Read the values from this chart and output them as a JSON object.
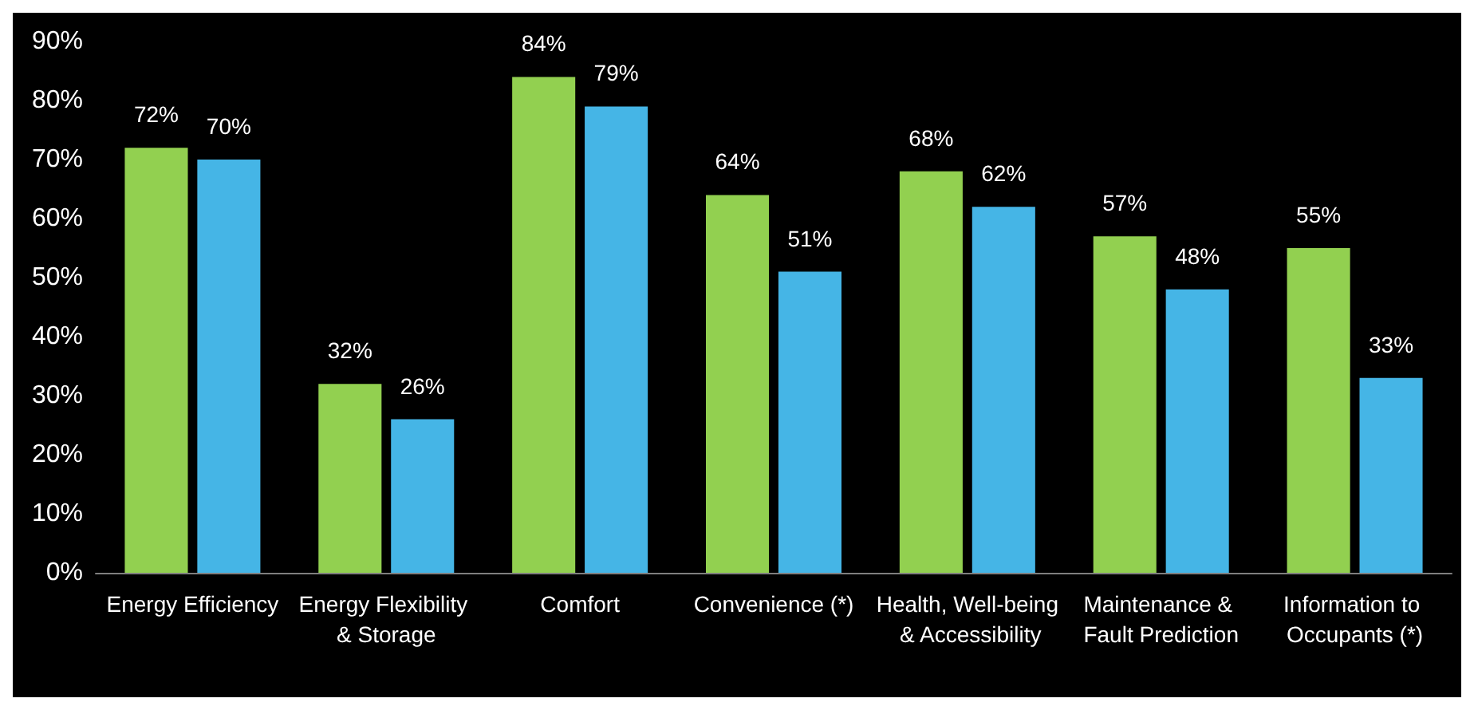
{
  "chart_data": {
    "type": "bar",
    "categories": [
      "Energy Efficiency",
      "Energy Flexibility & Storage",
      "Comfort",
      "Convenience (*)",
      "Health, Well-being & Accessibility",
      "Maintenance & Fault Prediction",
      "Information to Occupants (*)"
    ],
    "series": [
      {
        "color": "#92d050",
        "values": [
          72,
          32,
          84,
          64,
          68,
          57,
          55
        ],
        "value_labels": [
          "72%",
          "32%",
          "84%",
          "64%",
          "68%",
          "57%",
          "55%"
        ]
      },
      {
        "color": "#45b5e6",
        "values": [
          70,
          26,
          79,
          51,
          62,
          48,
          33
        ],
        "value_labels": [
          "70%",
          "26%",
          "79%",
          "51%",
          "62%",
          "48%",
          "33%"
        ]
      }
    ],
    "ylim": [
      0,
      90
    ],
    "yticks": [
      {
        "value": 0,
        "label": "0%"
      },
      {
        "value": 10,
        "label": "10%"
      },
      {
        "value": 20,
        "label": "20%"
      },
      {
        "value": 30,
        "label": "30%"
      },
      {
        "value": 40,
        "label": "40%"
      },
      {
        "value": 50,
        "label": "50%"
      },
      {
        "value": 60,
        "label": "60%"
      },
      {
        "value": 70,
        "label": "70%"
      },
      {
        "value": 80,
        "label": "80%"
      },
      {
        "value": 90,
        "label": "90%"
      }
    ],
    "grid": false
  }
}
